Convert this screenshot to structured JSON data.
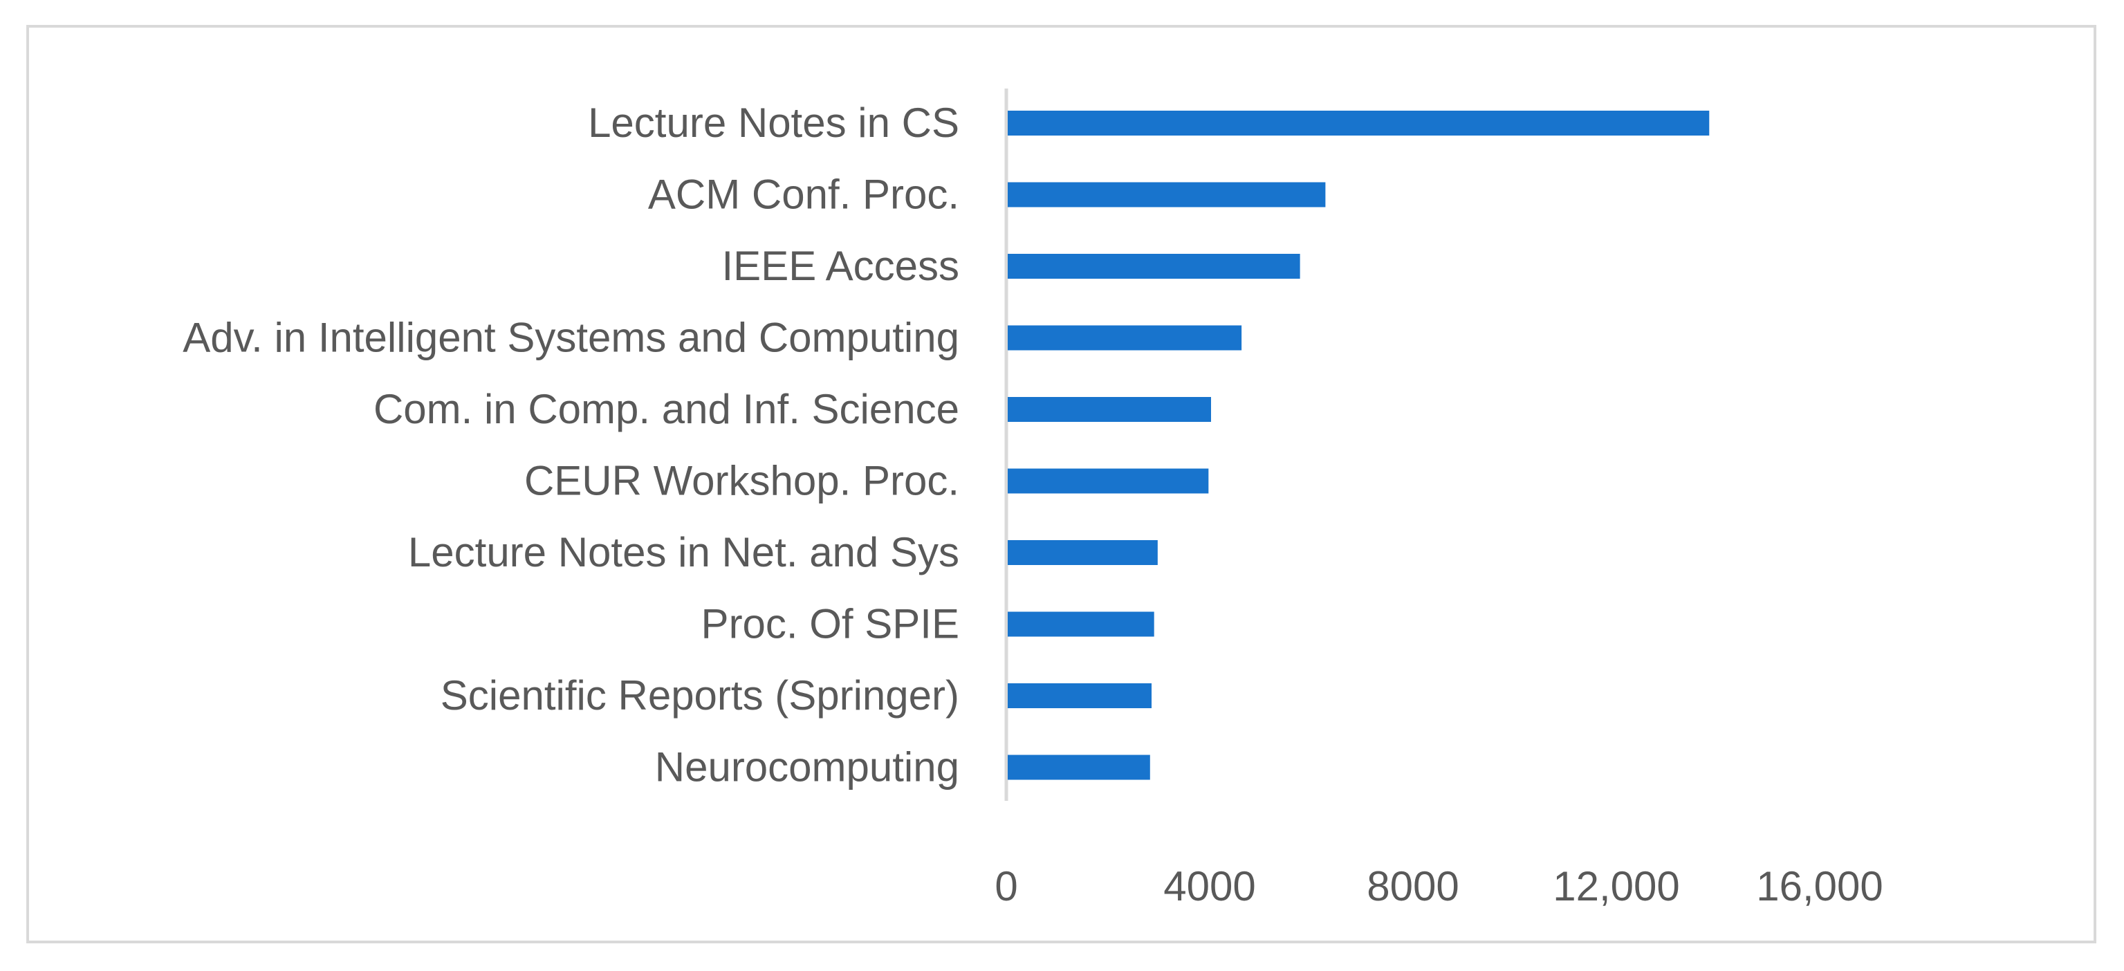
{
  "chart_data": {
    "type": "bar",
    "orientation": "horizontal",
    "title": "",
    "xlabel": "",
    "ylabel": "",
    "categories": [
      "Lecture Notes in CS",
      "ACM Conf. Proc.",
      "IEEE Access",
      "Adv. in Intelligent Systems and Computing",
      "Com. in Comp. and Inf. Science",
      "CEUR Workshop. Proc.",
      "Lecture Notes in Net. and Sys",
      "Proc. Of SPIE",
      "Scientific Reports (Springer)",
      "Neurocomputing"
    ],
    "values": [
      13800,
      6250,
      5750,
      4600,
      4000,
      3950,
      2950,
      2880,
      2830,
      2800
    ],
    "xlim": [
      0,
      16000
    ],
    "xticks": [
      0,
      4000,
      8000,
      12000,
      16000
    ],
    "xtick_labels": [
      "0",
      "4000",
      "8000",
      "12,000",
      "16,000"
    ],
    "grid": false,
    "legend": "none",
    "bar_color": "#1874cd",
    "axis_color": "#d9d9d9",
    "text_color": "#595959"
  }
}
